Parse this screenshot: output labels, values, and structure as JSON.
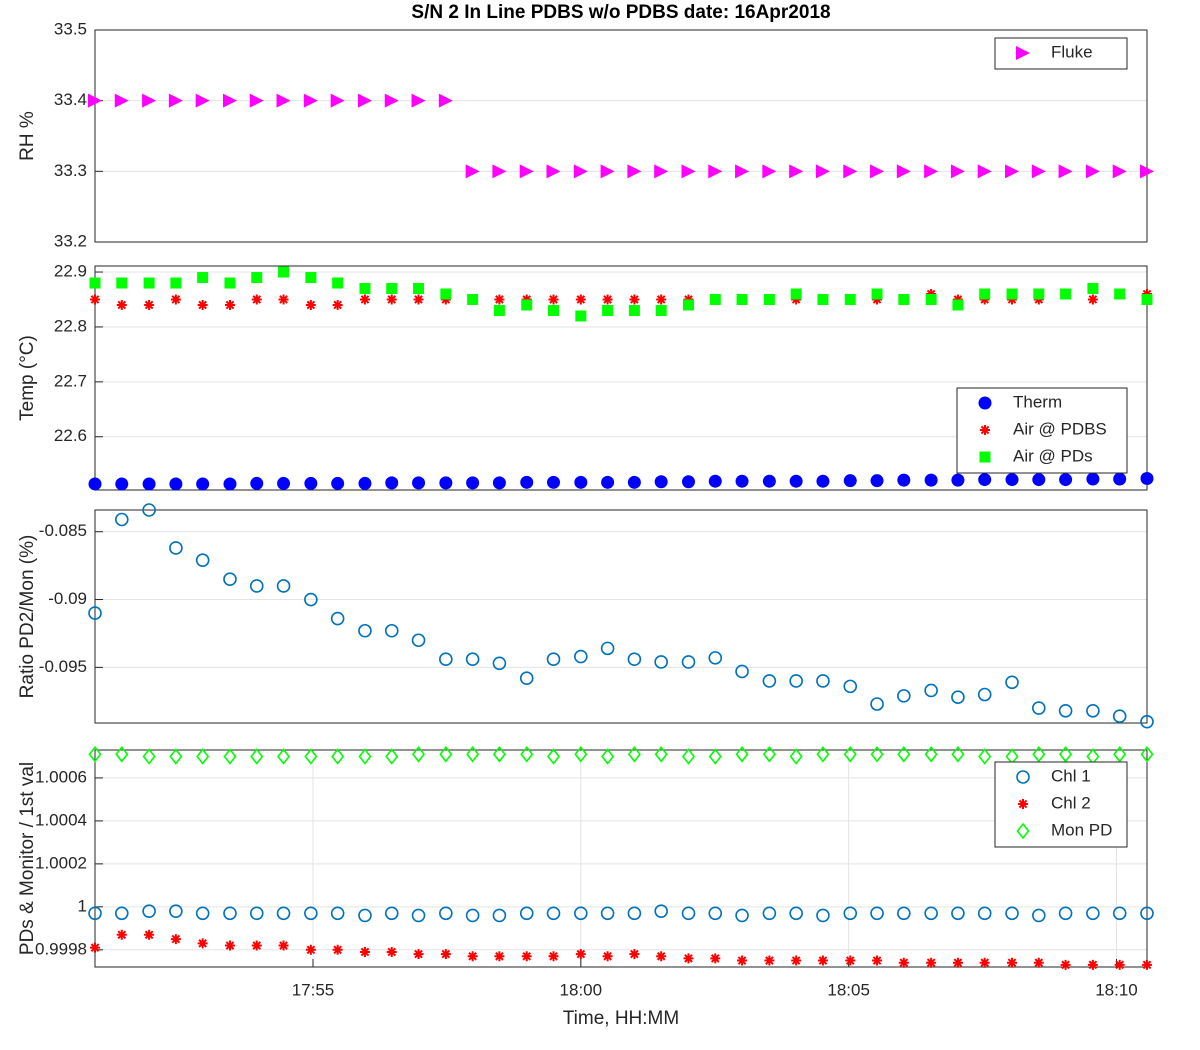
{
  "chart_data": [
    {
      "type": "scatter",
      "title": "S/N 2 In Line PDBS w/o PDBS date: 16Apr2018",
      "ylabel": "RH %",
      "x": [
        1070.93,
        1071.43,
        1071.94,
        1072.44,
        1072.94,
        1073.45,
        1073.95,
        1074.45,
        1074.96,
        1075.46,
        1075.97,
        1076.47,
        1076.97,
        1077.48,
        1077.98,
        1078.48,
        1078.99,
        1079.49,
        1080.0,
        1080.5,
        1081.0,
        1081.5,
        1082.01,
        1082.51,
        1083.01,
        1083.52,
        1084.02,
        1084.52,
        1085.03,
        1085.53,
        1086.03,
        1086.54,
        1087.04,
        1087.54,
        1088.05,
        1088.55,
        1089.05,
        1089.56,
        1090.06,
        1090.57
      ],
      "xlim": [
        1070.93,
        1090.57
      ],
      "ylim": [
        33.2,
        33.5
      ],
      "yticks": [
        33.2,
        33.3,
        33.4,
        33.5
      ],
      "grid": "y",
      "legend": "northeast",
      "series": [
        {
          "name": "Fluke",
          "color": "#ff00ff",
          "marker": "triangle-right",
          "values": [
            33.4,
            33.4,
            33.4,
            33.4,
            33.4,
            33.4,
            33.4,
            33.4,
            33.4,
            33.4,
            33.4,
            33.4,
            33.4,
            33.4,
            33.3,
            33.3,
            33.3,
            33.3,
            33.3,
            33.3,
            33.3,
            33.3,
            33.3,
            33.3,
            33.3,
            33.3,
            33.3,
            33.3,
            33.3,
            33.3,
            33.3,
            33.3,
            33.3,
            33.3,
            33.3,
            33.3,
            33.3,
            33.3,
            33.3,
            33.3
          ]
        }
      ]
    },
    {
      "type": "scatter",
      "ylabel": "Temp (°C)",
      "x": [
        1070.93,
        1071.43,
        1071.94,
        1072.44,
        1072.94,
        1073.45,
        1073.95,
        1074.45,
        1074.96,
        1075.46,
        1075.97,
        1076.47,
        1076.97,
        1077.48,
        1077.98,
        1078.48,
        1078.99,
        1079.49,
        1080.0,
        1080.5,
        1081.0,
        1081.5,
        1082.01,
        1082.51,
        1083.01,
        1083.52,
        1084.02,
        1084.52,
        1085.03,
        1085.53,
        1086.03,
        1086.54,
        1087.04,
        1087.54,
        1088.05,
        1088.55,
        1089.05,
        1089.56,
        1090.06,
        1090.57
      ],
      "xlim": [
        1070.93,
        1090.57
      ],
      "ylim": [
        22.503,
        22.911
      ],
      "yticks": [
        22.6,
        22.7,
        22.8,
        22.9
      ],
      "grid": "y",
      "legend": "southeast",
      "series": [
        {
          "name": "Therm",
          "color": "#0000ff",
          "marker": "circle-filled",
          "values": [
            22.514,
            22.514,
            22.514,
            22.514,
            22.514,
            22.514,
            22.515,
            22.515,
            22.515,
            22.515,
            22.515,
            22.516,
            22.516,
            22.516,
            22.516,
            22.516,
            22.517,
            22.517,
            22.517,
            22.517,
            22.517,
            22.518,
            22.518,
            22.519,
            22.519,
            22.519,
            22.519,
            22.519,
            22.52,
            22.52,
            22.521,
            22.521,
            22.521,
            22.522,
            22.522,
            22.522,
            22.522,
            22.523,
            22.523,
            22.524
          ]
        },
        {
          "name": "Air @ PDBS",
          "color": "#ff0000",
          "marker": "asterisk",
          "values": [
            22.85,
            22.84,
            22.84,
            22.85,
            22.84,
            22.84,
            22.85,
            22.85,
            22.84,
            22.84,
            22.85,
            22.85,
            22.85,
            22.85,
            22.85,
            22.85,
            22.85,
            22.85,
            22.85,
            22.85,
            22.85,
            22.85,
            22.85,
            22.85,
            22.85,
            22.85,
            22.85,
            22.85,
            22.85,
            22.85,
            22.85,
            22.86,
            22.85,
            22.85,
            22.85,
            22.85,
            22.86,
            22.85,
            22.86,
            22.86
          ]
        },
        {
          "name": "Air @ PDs",
          "color": "#00ff00",
          "marker": "square",
          "values": [
            22.88,
            22.88,
            22.88,
            22.88,
            22.89,
            22.88,
            22.89,
            22.9,
            22.89,
            22.88,
            22.87,
            22.87,
            22.87,
            22.86,
            22.85,
            22.83,
            22.84,
            22.83,
            22.82,
            22.83,
            22.83,
            22.83,
            22.84,
            22.85,
            22.85,
            22.85,
            22.86,
            22.85,
            22.85,
            22.86,
            22.85,
            22.85,
            22.84,
            22.86,
            22.86,
            22.86,
            22.86,
            22.87,
            22.86,
            22.85
          ]
        }
      ]
    },
    {
      "type": "scatter",
      "ylabel": "Ratio PD2/Mon (%)",
      "x": [
        1070.93,
        1071.43,
        1071.94,
        1072.44,
        1072.94,
        1073.45,
        1073.95,
        1074.45,
        1074.96,
        1075.46,
        1075.97,
        1076.47,
        1076.97,
        1077.48,
        1077.98,
        1078.48,
        1078.99,
        1079.49,
        1080.0,
        1080.5,
        1081.0,
        1081.5,
        1082.01,
        1082.51,
        1083.01,
        1083.52,
        1084.02,
        1084.52,
        1085.03,
        1085.53,
        1086.03,
        1086.54,
        1087.04,
        1087.54,
        1088.05,
        1088.55,
        1089.05,
        1089.56,
        1090.06,
        1090.57
      ],
      "xlim": [
        1070.93,
        1090.57
      ],
      "ylim": [
        -0.0991,
        -0.0834
      ],
      "yticks": [
        -0.095,
        -0.09,
        -0.085
      ],
      "grid": "y",
      "series": [
        {
          "color": "#0072bd",
          "marker": "circle-open",
          "values": [
            -0.091,
            -0.0841,
            -0.0834,
            -0.0862,
            -0.0871,
            -0.0885,
            -0.089,
            -0.089,
            -0.09,
            -0.0914,
            -0.0923,
            -0.0923,
            -0.093,
            -0.0944,
            -0.0944,
            -0.0947,
            -0.0958,
            -0.0944,
            -0.0942,
            -0.0936,
            -0.0944,
            -0.0946,
            -0.0946,
            -0.0943,
            -0.0953,
            -0.096,
            -0.096,
            -0.096,
            -0.0964,
            -0.0977,
            -0.0971,
            -0.0967,
            -0.0972,
            -0.097,
            -0.0961,
            -0.098,
            -0.0982,
            -0.0982,
            -0.0986,
            -0.099
          ]
        }
      ]
    },
    {
      "type": "scatter",
      "ylabel": "PDs & Monitor / 1st val",
      "xlabel": "Time, HH:MM",
      "x": [
        1070.93,
        1071.43,
        1071.94,
        1072.44,
        1072.94,
        1073.45,
        1073.95,
        1074.45,
        1074.96,
        1075.46,
        1075.97,
        1076.47,
        1076.97,
        1077.48,
        1077.98,
        1078.48,
        1078.99,
        1079.49,
        1080.0,
        1080.5,
        1081.0,
        1081.5,
        1082.01,
        1082.51,
        1083.01,
        1083.52,
        1084.02,
        1084.52,
        1085.03,
        1085.53,
        1086.03,
        1086.54,
        1087.04,
        1087.54,
        1088.05,
        1088.55,
        1089.05,
        1089.56,
        1090.06,
        1090.57
      ],
      "xlim": [
        1070.93,
        1090.57
      ],
      "xticks": [
        {
          "value": 1075,
          "label": "17:55"
        },
        {
          "value": 1080,
          "label": "18:00"
        },
        {
          "value": 1085,
          "label": "18:05"
        },
        {
          "value": 1090,
          "label": "18:10"
        }
      ],
      "ylim": [
        0.99972,
        1.00073
      ],
      "yticks": [
        0.9998,
        1,
        1.0002,
        1.0004,
        1.0006
      ],
      "grid": "both",
      "legend": "northeast",
      "series": [
        {
          "name": "Chl 1",
          "color": "#0072bd",
          "marker": "circle-open",
          "values": [
            0.99997,
            0.99997,
            0.99998,
            0.99998,
            0.99997,
            0.99997,
            0.99997,
            0.99997,
            0.99997,
            0.99997,
            0.99996,
            0.99997,
            0.99996,
            0.99997,
            0.99996,
            0.99996,
            0.99997,
            0.99997,
            0.99997,
            0.99997,
            0.99997,
            0.99998,
            0.99997,
            0.99997,
            0.99996,
            0.99997,
            0.99997,
            0.99996,
            0.99997,
            0.99997,
            0.99997,
            0.99997,
            0.99997,
            0.99997,
            0.99997,
            0.99996,
            0.99997,
            0.99997,
            0.99997,
            0.99997
          ]
        },
        {
          "name": "Chl 2",
          "color": "#ff0000",
          "marker": "asterisk",
          "values": [
            0.99981,
            0.99987,
            0.99987,
            0.99985,
            0.99983,
            0.99982,
            0.99982,
            0.99982,
            0.9998,
            0.9998,
            0.99979,
            0.99979,
            0.99978,
            0.99978,
            0.99977,
            0.99977,
            0.99977,
            0.99977,
            0.99978,
            0.99977,
            0.99978,
            0.99977,
            0.99976,
            0.99976,
            0.99975,
            0.99975,
            0.99975,
            0.99975,
            0.99975,
            0.99975,
            0.99974,
            0.99974,
            0.99974,
            0.99974,
            0.99974,
            0.99974,
            0.99973,
            0.99973,
            0.99973,
            0.99973
          ]
        },
        {
          "name": "Mon PD",
          "color": "#00ff00",
          "marker": "diamond-open",
          "values": [
            1.00071,
            1.00071,
            1.0007,
            1.0007,
            1.0007,
            1.0007,
            1.0007,
            1.0007,
            1.0007,
            1.0007,
            1.0007,
            1.0007,
            1.00071,
            1.00071,
            1.00071,
            1.00071,
            1.00071,
            1.0007,
            1.00071,
            1.0007,
            1.00071,
            1.00071,
            1.0007,
            1.0007,
            1.00071,
            1.00071,
            1.0007,
            1.00071,
            1.00071,
            1.00071,
            1.00071,
            1.00071,
            1.00071,
            1.0007,
            1.0007,
            1.00071,
            1.00071,
            1.0007,
            1.00071,
            1.00071
          ]
        }
      ]
    }
  ]
}
